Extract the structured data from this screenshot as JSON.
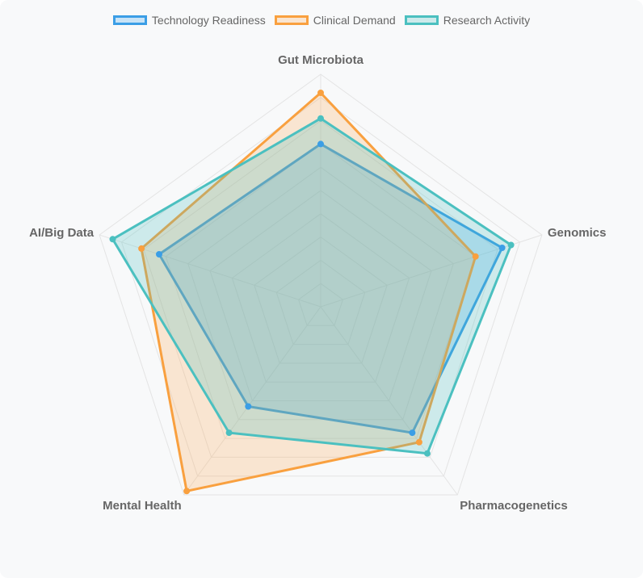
{
  "chart_data": {
    "type": "radar",
    "axes": [
      "Gut Microbiota",
      "Genomics",
      "Pharmacogenetics",
      "Mental Health",
      "AI/Big Data"
    ],
    "series": [
      {
        "name": "Technology Readiness",
        "values": [
          7.0,
          8.2,
          6.7,
          5.3,
          7.3
        ],
        "color": "#3b9ee6",
        "fill": "rgba(54,162,235,0.25)"
      },
      {
        "name": "Clinical Demand",
        "values": [
          9.2,
          7.0,
          7.2,
          9.8,
          8.1
        ],
        "color": "#f9a03f",
        "fill": "rgba(255,159,64,0.22)"
      },
      {
        "name": "Research Activity",
        "values": [
          8.1,
          8.6,
          7.8,
          6.7,
          9.4
        ],
        "color": "#4bc0c0",
        "fill": "rgba(75,192,192,0.25)"
      }
    ],
    "range": [
      0,
      10
    ],
    "gridlines": true,
    "legend_position": "top"
  }
}
